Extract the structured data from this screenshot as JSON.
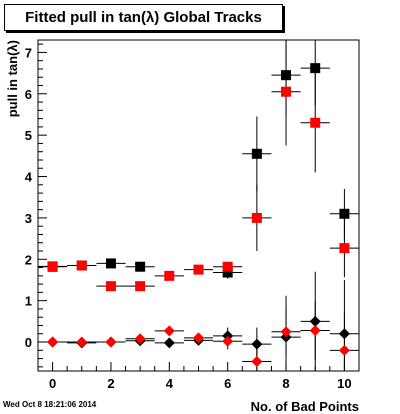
{
  "chart_data": {
    "type": "scatter",
    "title": "Fitted pull in tan(λ)  Global Tracks",
    "xlabel": "No. of Bad Points",
    "ylabel": "pull in tan(λ)",
    "xlim": [
      -0.5,
      10.5
    ],
    "ylim": [
      -0.7,
      7.3
    ],
    "x_ticks": [
      0,
      2,
      4,
      6,
      8,
      10
    ],
    "y_ticks": [
      0,
      1,
      2,
      3,
      4,
      5,
      6,
      7
    ],
    "grid": false,
    "legend": "none",
    "series": [
      {
        "marker": "square",
        "color": "#000000",
        "x": [
          0,
          1,
          2,
          3,
          6,
          7,
          8,
          9,
          10
        ],
        "y": [
          1.82,
          1.85,
          1.9,
          1.82,
          1.68,
          4.55,
          6.45,
          6.62,
          3.1
        ],
        "yerr": [
          0.05,
          0.05,
          0.05,
          0.06,
          0.15,
          0.9,
          1.0,
          0.9,
          0.6
        ]
      },
      {
        "marker": "square",
        "color": "#ff0000",
        "x": [
          0,
          1,
          2,
          3,
          4,
          5,
          6,
          7,
          8,
          9,
          10
        ],
        "y": [
          1.83,
          1.85,
          1.35,
          1.35,
          1.6,
          1.75,
          1.82,
          3.0,
          6.05,
          5.3,
          2.27
        ],
        "yerr": [
          0.05,
          0.05,
          0.05,
          0.05,
          0.05,
          0.06,
          0.08,
          0.8,
          1.3,
          1.2,
          0.7
        ]
      },
      {
        "marker": "diamond",
        "color": "#000000",
        "x": [
          0,
          1,
          2,
          3,
          4,
          5,
          6,
          7,
          8,
          9,
          10
        ],
        "y": [
          0.0,
          -0.02,
          0.0,
          0.03,
          -0.02,
          0.04,
          0.15,
          -0.05,
          0.12,
          0.5,
          0.2
        ],
        "yerr": [
          0.02,
          0.02,
          0.02,
          0.03,
          0.05,
          0.08,
          0.2,
          0.4,
          1.0,
          1.2,
          1.3
        ]
      },
      {
        "marker": "diamond",
        "color": "#ff0000",
        "x": [
          0,
          1,
          2,
          3,
          4,
          5,
          6,
          7,
          8,
          9,
          10
        ],
        "y": [
          0.0,
          0.0,
          0.0,
          0.08,
          0.27,
          0.1,
          0.02,
          -0.47,
          0.25,
          0.28,
          -0.2
        ],
        "yerr": [
          0.02,
          0.02,
          0.02,
          0.05,
          0.05,
          0.08,
          0.2,
          0.5,
          0.6,
          0.7,
          0.9
        ]
      }
    ]
  },
  "footer": {
    "timestamp": "Wed Oct  8 18:21:06 2014"
  }
}
